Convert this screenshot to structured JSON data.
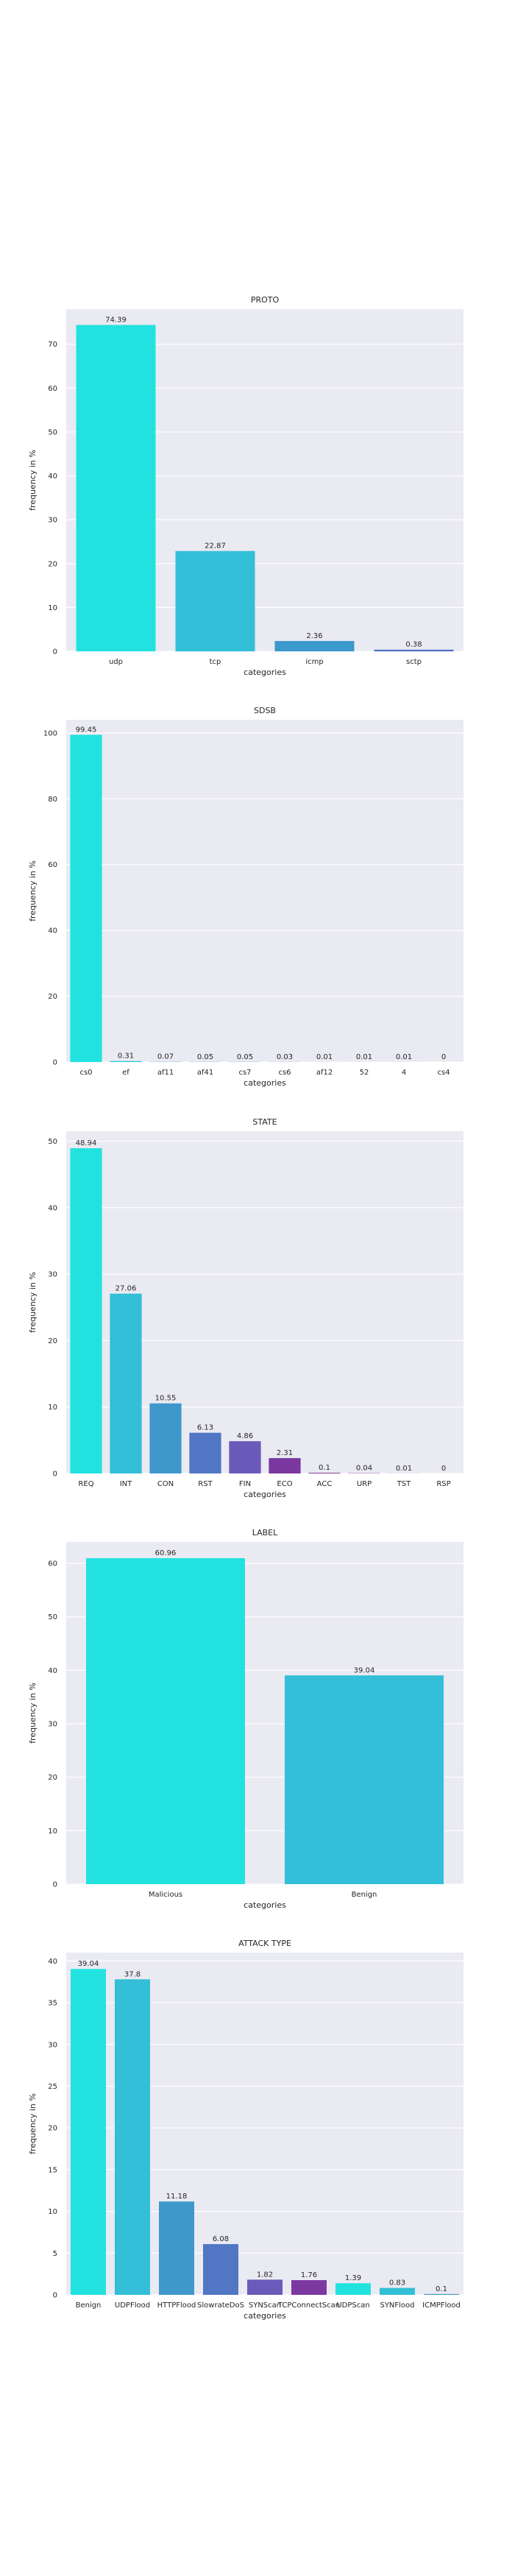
{
  "chart_data": [
    {
      "type": "bar",
      "title": "PROTO",
      "xlabel": "categories",
      "ylabel": "frequency in %",
      "categories": [
        "udp",
        "tcp",
        "icmp",
        "sctp"
      ],
      "values": [
        74.39,
        22.87,
        2.36,
        0.38
      ],
      "labels": [
        "74.39",
        "22.87",
        "2.36",
        "0.38"
      ],
      "ylim": [
        0,
        78
      ],
      "yticks": [
        0,
        10,
        20,
        30,
        40,
        50,
        60,
        70
      ],
      "colors": [
        "#22e2e0",
        "#33bfd7",
        "#3b99cb",
        "#4b71c3"
      ],
      "grid": true
    },
    {
      "type": "bar",
      "title": "SDSB",
      "xlabel": "categories",
      "ylabel": "frequency in %",
      "categories": [
        "cs0",
        "ef",
        "af11",
        "af41",
        "cs7",
        "cs6",
        "af12",
        "52",
        "4",
        "cs4"
      ],
      "values": [
        99.45,
        0.31,
        0.07,
        0.05,
        0.05,
        0.03,
        0.01,
        0.01,
        0.01,
        0
      ],
      "labels": [
        "99.45",
        "0.31",
        "0.07",
        "0.05",
        "0.05",
        "0.03",
        "0.01",
        "0.01",
        "0.01",
        "0"
      ],
      "ylim": [
        0,
        104
      ],
      "yticks": [
        0,
        20,
        40,
        60,
        80,
        100
      ],
      "colors": [
        "#22e2e0",
        "#2fcbd9",
        "#38b1d1",
        "#3e98cb",
        "#4a80c6",
        "#5767bf",
        "#654fb5",
        "#7340a7",
        "#7a3398",
        "#7f2a8a"
      ],
      "grid": true
    },
    {
      "type": "bar",
      "title": "STATE",
      "xlabel": "categories",
      "ylabel": "frequency in %",
      "categories": [
        "REQ",
        "INT",
        "CON",
        "RST",
        "FIN",
        "ECO",
        "ACC",
        "URP",
        "TST",
        "RSP"
      ],
      "values": [
        48.94,
        27.06,
        10.55,
        6.13,
        4.86,
        2.31,
        0.1,
        0.04,
        0.01,
        0
      ],
      "labels": [
        "48.94",
        "27.06",
        "10.55",
        "6.13",
        "4.86",
        "2.31",
        "0.1",
        "0.04",
        "0.01",
        "0"
      ],
      "ylim": [
        0,
        51.5
      ],
      "yticks": [
        0,
        10,
        20,
        30,
        40,
        50
      ],
      "colors": [
        "#22e2e0",
        "#33bfd7",
        "#3e98cb",
        "#5176c4",
        "#6a5bba",
        "#7a38a0",
        "#7f2d8f",
        "#7f2a8a",
        "#7f2a8a",
        "#7f2a8a"
      ],
      "grid": true
    },
    {
      "type": "bar",
      "title": "LABEL",
      "xlabel": "categories",
      "ylabel": "frequency in %",
      "categories": [
        "Malicious",
        "Benign"
      ],
      "values": [
        60.96,
        39.04
      ],
      "labels": [
        "60.96",
        "39.04"
      ],
      "ylim": [
        0,
        64
      ],
      "yticks": [
        0,
        10,
        20,
        30,
        40,
        50,
        60
      ],
      "colors": [
        "#22e2e0",
        "#33bfd7"
      ],
      "grid": true
    },
    {
      "type": "bar",
      "title": "ATTACK TYPE",
      "xlabel": "categories",
      "ylabel": "frequency in %",
      "categories": [
        "Benign",
        "UDPFlood",
        "HTTPFlood",
        "SlowrateDoS",
        "SYNScan",
        "TCPConnectScan",
        "UDPScan",
        "SYNFlood",
        "ICMPFlood"
      ],
      "values": [
        39.04,
        37.8,
        11.18,
        6.08,
        1.82,
        1.76,
        1.39,
        0.83,
        0.1
      ],
      "labels": [
        "39.04",
        "37.8",
        "11.18",
        "6.08",
        "1.82",
        "1.76",
        "1.39",
        "0.83",
        "0.1"
      ],
      "ylim": [
        0,
        41
      ],
      "yticks": [
        0,
        5,
        10,
        15,
        20,
        25,
        30,
        35,
        40
      ],
      "colors": [
        "#22e2e0",
        "#33bfd7",
        "#3e98cb",
        "#5176c4",
        "#6a5bba",
        "#7a38a0",
        "#22e2e0",
        "#33bfd7",
        "#3e98cb"
      ],
      "grid": true
    }
  ]
}
